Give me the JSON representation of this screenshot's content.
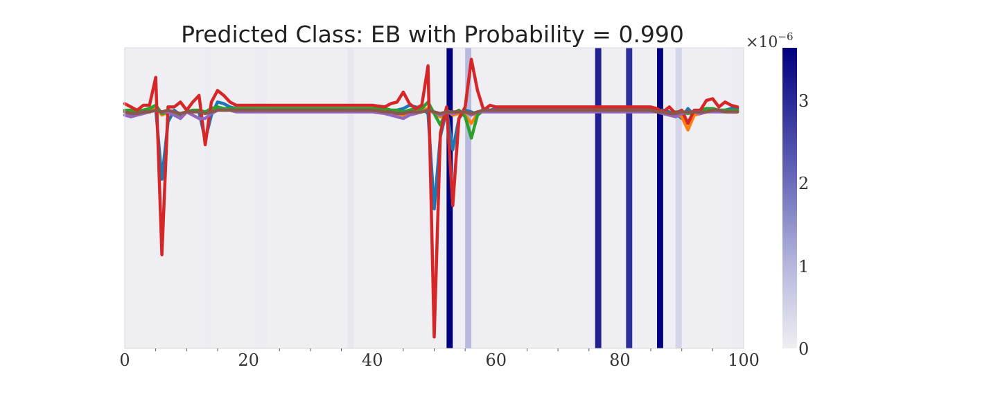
{
  "chart_data": {
    "type": "line",
    "title": "Predicted Class: EB with Probability = 0.990",
    "xlabel": "",
    "ylabel": "",
    "xlim": [
      0,
      100
    ],
    "x_ticks": [
      "0",
      "20",
      "40",
      "60",
      "80",
      "100"
    ],
    "x_minor_ticks": [
      5,
      10,
      15,
      25,
      30,
      35,
      45,
      50,
      55,
      65,
      70,
      75,
      85,
      90,
      95
    ],
    "ylim": [
      -1.45,
      0.38
    ],
    "y_ticks_shown": false,
    "grid": false,
    "legend": "none",
    "series": [
      {
        "color": "#1f77b4",
        "x": [
          0,
          1,
          2,
          3,
          4,
          5,
          6,
          7,
          8,
          9,
          10,
          11,
          12,
          13,
          14,
          15,
          16,
          17,
          18,
          19,
          20,
          25,
          30,
          35,
          40,
          42,
          43,
          44,
          45,
          46,
          47,
          48,
          49,
          50,
          51,
          52,
          53,
          54,
          55,
          56,
          57,
          58,
          59,
          60,
          65,
          70,
          75,
          80,
          85,
          86,
          87,
          88,
          89,
          90,
          91,
          92,
          93,
          94,
          95,
          96,
          97,
          98,
          99
        ],
        "values": [
          0.0,
          -0.01,
          -0.01,
          0.0,
          0.0,
          0.01,
          -0.42,
          -0.07,
          0.0,
          -0.03,
          -0.01,
          0.0,
          -0.01,
          -0.18,
          -0.03,
          0.05,
          0.04,
          0.02,
          0.01,
          0.01,
          0.01,
          0.01,
          0.01,
          0.01,
          0.01,
          0.01,
          0.0,
          0.0,
          0.01,
          0.03,
          0.02,
          0.01,
          -0.02,
          -0.6,
          -0.16,
          0.0,
          -0.24,
          -0.05,
          0.0,
          -0.01,
          -0.03,
          0.01,
          0.0,
          0.01,
          0.01,
          0.01,
          0.01,
          0.01,
          0.01,
          0.0,
          0.0,
          -0.01,
          -0.02,
          -0.05,
          0.01,
          -0.03,
          -0.02,
          -0.01,
          0.0,
          0.0,
          0.0,
          0.01,
          0.01
        ]
      },
      {
        "color": "#ff7f0e",
        "x": [
          0,
          1,
          2,
          3,
          4,
          5,
          6,
          7,
          8,
          9,
          10,
          11,
          12,
          13,
          14,
          15,
          16,
          17,
          18,
          19,
          20,
          25,
          30,
          35,
          40,
          42,
          43,
          44,
          45,
          46,
          47,
          48,
          49,
          50,
          51,
          52,
          53,
          54,
          55,
          56,
          57,
          58,
          59,
          60,
          65,
          70,
          75,
          80,
          85,
          86,
          87,
          88,
          89,
          90,
          91,
          92,
          93,
          94,
          95,
          96,
          97,
          98,
          99
        ],
        "values": [
          -0.01,
          -0.01,
          -0.01,
          -0.01,
          0.0,
          0.02,
          -0.03,
          -0.01,
          -0.02,
          -0.05,
          -0.01,
          -0.01,
          0.0,
          -0.02,
          0.0,
          0.01,
          0.01,
          0.0,
          0.0,
          0.0,
          0.0,
          0.0,
          0.0,
          0.0,
          0.0,
          0.0,
          -0.01,
          -0.02,
          -0.03,
          -0.01,
          0.0,
          0.0,
          0.01,
          -0.02,
          -0.04,
          0.0,
          -0.03,
          -0.02,
          -0.03,
          -0.08,
          -0.02,
          0.0,
          0.0,
          0.0,
          0.0,
          0.0,
          0.0,
          0.0,
          0.0,
          -0.01,
          -0.02,
          -0.03,
          -0.02,
          -0.04,
          -0.12,
          -0.03,
          -0.02,
          -0.01,
          0.0,
          0.0,
          0.0,
          -0.01,
          -0.01
        ]
      },
      {
        "color": "#2ca02c",
        "x": [
          0,
          1,
          2,
          3,
          4,
          5,
          6,
          7,
          8,
          9,
          10,
          11,
          12,
          13,
          14,
          15,
          16,
          17,
          18,
          19,
          20,
          25,
          30,
          35,
          40,
          42,
          43,
          44,
          45,
          46,
          47,
          48,
          49,
          50,
          51,
          52,
          53,
          54,
          55,
          56,
          57,
          58,
          59,
          60,
          65,
          70,
          75,
          80,
          85,
          86,
          87,
          88,
          89,
          90,
          91,
          92,
          93,
          94,
          95,
          96,
          97,
          98,
          99
        ],
        "values": [
          0.0,
          0.0,
          -0.01,
          0.0,
          0.01,
          0.03,
          -0.02,
          -0.01,
          -0.03,
          -0.02,
          -0.01,
          0.0,
          0.0,
          -0.01,
          0.01,
          0.02,
          0.01,
          0.01,
          0.01,
          0.01,
          0.01,
          0.01,
          0.01,
          0.01,
          0.01,
          0.01,
          0.0,
          0.0,
          -0.01,
          0.0,
          0.01,
          0.01,
          0.05,
          -0.02,
          -0.09,
          0.0,
          -0.02,
          0.0,
          -0.04,
          -0.17,
          -0.03,
          0.0,
          0.0,
          0.0,
          0.0,
          0.0,
          0.0,
          0.0,
          0.0,
          0.0,
          -0.02,
          -0.03,
          -0.01,
          -0.01,
          -0.02,
          -0.01,
          0.0,
          0.01,
          0.01,
          0.0,
          0.0,
          0.0,
          0.0
        ]
      },
      {
        "color": "#d62728",
        "x": [
          0,
          1,
          2,
          3,
          4,
          5,
          6,
          7,
          8,
          9,
          10,
          11,
          12,
          13,
          14,
          15,
          16,
          17,
          18,
          19,
          20,
          25,
          30,
          35,
          40,
          42,
          43,
          44,
          45,
          46,
          47,
          48,
          49,
          50,
          51,
          52,
          53,
          54,
          55,
          56,
          57,
          58,
          59,
          60,
          61,
          62,
          65,
          70,
          75,
          80,
          85,
          86,
          87,
          88,
          89,
          90,
          91,
          92,
          93,
          94,
          95,
          96,
          97,
          98,
          99
        ],
        "values": [
          0.04,
          0.02,
          0.0,
          0.03,
          0.03,
          0.2,
          -0.88,
          0.02,
          0.02,
          0.05,
          0.0,
          0.05,
          0.09,
          -0.21,
          0.05,
          0.12,
          0.09,
          0.05,
          0.03,
          0.03,
          0.03,
          0.03,
          0.03,
          0.03,
          0.03,
          0.02,
          0.04,
          0.05,
          0.11,
          0.04,
          0.01,
          0.03,
          0.27,
          -1.38,
          -0.14,
          0.02,
          -0.58,
          -0.05,
          0.02,
          0.31,
          0.12,
          0.0,
          0.03,
          0.02,
          0.02,
          0.02,
          0.02,
          0.02,
          0.02,
          0.02,
          0.02,
          0.01,
          -0.01,
          0.02,
          -0.02,
          0.0,
          -0.08,
          0.0,
          0.0,
          0.06,
          0.07,
          0.02,
          0.05,
          0.03,
          0.02
        ]
      },
      {
        "color": "#9467bd",
        "x": [
          0,
          1,
          2,
          3,
          4,
          5,
          6,
          7,
          8,
          9,
          10,
          11,
          12,
          13,
          14,
          15,
          16,
          17,
          18,
          19,
          20,
          25,
          30,
          35,
          40,
          42,
          43,
          44,
          45,
          46,
          47,
          48,
          49,
          50,
          51,
          52,
          53,
          54,
          55,
          56,
          57,
          58,
          59,
          60,
          65,
          70,
          75,
          80,
          85,
          86,
          87,
          88,
          89,
          90,
          91,
          92,
          93,
          94,
          95,
          96,
          97,
          98,
          99
        ],
        "values": [
          -0.03,
          -0.04,
          -0.03,
          -0.02,
          -0.01,
          0.0,
          -0.01,
          -0.01,
          -0.03,
          -0.05,
          -0.01,
          -0.03,
          -0.05,
          -0.05,
          -0.02,
          0.0,
          0.0,
          0.0,
          -0.01,
          -0.01,
          -0.01,
          -0.01,
          -0.01,
          -0.01,
          -0.01,
          -0.02,
          -0.03,
          -0.04,
          -0.05,
          -0.03,
          -0.02,
          -0.01,
          0.0,
          -0.01,
          -0.03,
          -0.01,
          -0.02,
          -0.01,
          -0.01,
          -0.03,
          -0.01,
          -0.01,
          -0.01,
          -0.01,
          -0.01,
          -0.01,
          -0.01,
          -0.01,
          -0.01,
          -0.01,
          -0.02,
          -0.03,
          -0.04,
          -0.02,
          -0.01,
          -0.01,
          -0.02,
          -0.01,
          -0.01,
          -0.01,
          -0.01,
          -0.01,
          -0.01
        ]
      },
      {
        "color": "#8c564b",
        "x": [
          0,
          1,
          2,
          3,
          4,
          5,
          6,
          7,
          8,
          9,
          10,
          11,
          12,
          13,
          14,
          15,
          16,
          17,
          18,
          19,
          20,
          25,
          30,
          35,
          40,
          42,
          43,
          44,
          45,
          46,
          47,
          48,
          49,
          50,
          51,
          52,
          53,
          54,
          55,
          56,
          57,
          58,
          59,
          60,
          65,
          70,
          75,
          80,
          85,
          86,
          87,
          88,
          89,
          90,
          91,
          92,
          93,
          94,
          95,
          96,
          97,
          98,
          99
        ],
        "values": [
          -0.01,
          -0.02,
          -0.02,
          -0.01,
          -0.01,
          0.0,
          -0.01,
          0.0,
          -0.01,
          -0.02,
          -0.01,
          -0.01,
          -0.01,
          -0.02,
          -0.01,
          0.0,
          0.0,
          0.0,
          0.0,
          0.0,
          0.0,
          0.0,
          0.0,
          0.0,
          0.0,
          -0.01,
          -0.01,
          -0.02,
          -0.02,
          -0.01,
          -0.01,
          -0.01,
          0.0,
          -0.01,
          -0.02,
          -0.01,
          -0.01,
          -0.01,
          -0.01,
          -0.02,
          -0.01,
          0.0,
          0.0,
          0.0,
          0.0,
          0.0,
          0.0,
          0.0,
          0.0,
          -0.01,
          -0.01,
          -0.02,
          -0.02,
          -0.01,
          -0.01,
          -0.01,
          -0.01,
          -0.01,
          0.0,
          0.0,
          -0.01,
          -0.01,
          -0.01
        ]
      }
    ],
    "importance_bands": {
      "description": "background shading of x intervals by importance value",
      "intervals": [
        {
          "x0": 0,
          "x1": 13,
          "value": 0.0
        },
        {
          "x0": 13,
          "x1": 14,
          "value": 0.03
        },
        {
          "x0": 21,
          "x1": 23,
          "value": 0.03
        },
        {
          "x0": 36,
          "x1": 37,
          "value": 0.12
        },
        {
          "x0": 52,
          "x1": 53,
          "value": 3.6
        },
        {
          "x0": 55,
          "x1": 56,
          "value": 0.95
        },
        {
          "x0": 76,
          "x1": 77,
          "value": 3.1
        },
        {
          "x0": 81,
          "x1": 82,
          "value": 2.9
        },
        {
          "x0": 86,
          "x1": 87,
          "value": 3.55
        },
        {
          "x0": 89,
          "x1": 90,
          "value": 0.45
        },
        {
          "x0": 98,
          "x1": 100,
          "value": 0.03
        }
      ]
    },
    "colorbar": {
      "ticks": [
        "0",
        "1",
        "2",
        "3"
      ],
      "tick_values": [
        0,
        1,
        2,
        3
      ],
      "range": [
        0,
        3.6
      ],
      "multiplier_base": "×10",
      "multiplier_exponent": "−6",
      "color_low": "#efeef3",
      "color_high": "#00007f"
    }
  }
}
